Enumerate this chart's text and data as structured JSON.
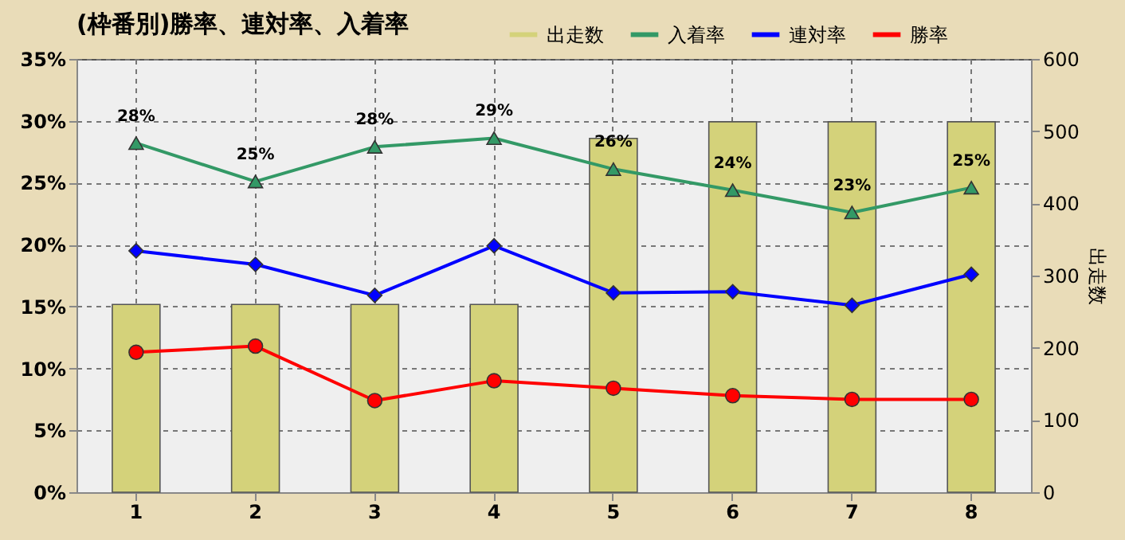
{
  "chart_data": {
    "type": "line",
    "title": "(枠番別)勝率、連対率、入着率",
    "y2label": "出走数",
    "categories": [
      "1",
      "2",
      "3",
      "4",
      "5",
      "6",
      "7",
      "8"
    ],
    "series": [
      {
        "name": "出走数",
        "type": "bar",
        "axis": "y2",
        "color": "#d4d27a",
        "values": [
          260,
          260,
          260,
          260,
          490,
          513,
          513,
          513
        ]
      },
      {
        "name": "入着率",
        "color": "#339966",
        "marker": "triangle",
        "values": [
          28.2,
          25.1,
          27.9,
          28.6,
          26.1,
          24.4,
          22.6,
          24.6
        ],
        "value_labels": [
          "28%",
          "25%",
          "28%",
          "29%",
          "26%",
          "24%",
          "23%",
          "25%"
        ]
      },
      {
        "name": "連対率",
        "color": "#0000ff",
        "marker": "diamond",
        "values": [
          19.5,
          18.4,
          15.9,
          19.9,
          16.1,
          16.2,
          15.1,
          17.6
        ]
      },
      {
        "name": "勝率",
        "color": "#ff0000",
        "marker": "circle",
        "values": [
          11.3,
          11.8,
          7.4,
          9.0,
          8.4,
          7.8,
          7.5,
          7.5
        ]
      }
    ],
    "ylim": [
      0,
      35
    ],
    "yticks": [
      {
        "value": 0,
        "label": "0%"
      },
      {
        "value": 5,
        "label": "5%"
      },
      {
        "value": 10,
        "label": "10%"
      },
      {
        "value": 15,
        "label": "15%"
      },
      {
        "value": 20,
        "label": "20%"
      },
      {
        "value": 25,
        "label": "25%"
      },
      {
        "value": 30,
        "label": "30%"
      },
      {
        "value": 35,
        "label": "35%"
      }
    ],
    "y2lim": [
      0,
      600
    ],
    "y2ticks": [
      0,
      100,
      200,
      300,
      400,
      500,
      600
    ],
    "grid": true,
    "legend": "top right"
  }
}
